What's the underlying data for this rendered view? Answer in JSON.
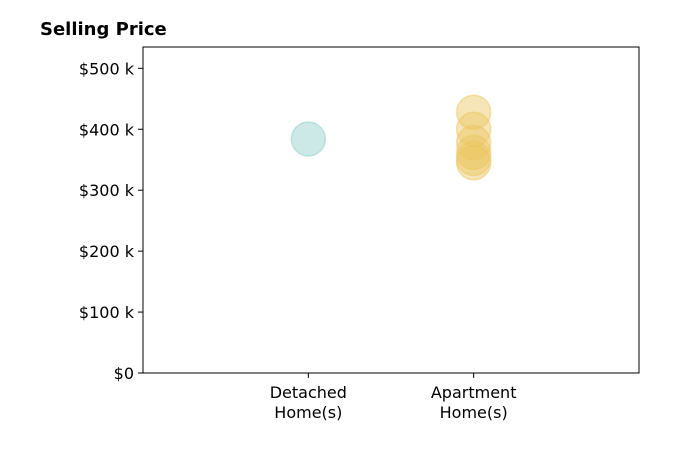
{
  "chart_data": {
    "type": "scatter",
    "title": "Selling Price",
    "xlabel": "",
    "ylabel": "",
    "categories": [
      [
        "Detached",
        "Home(s)"
      ],
      [
        "Apartment",
        "Home(s)"
      ]
    ],
    "x_range": [
      -1,
      2
    ],
    "ylim": [
      0,
      535000
    ],
    "y_ticks": [
      0,
      100000,
      200000,
      300000,
      400000,
      500000
    ],
    "y_tick_labels": [
      "$0",
      "$100 k",
      "$200 k",
      "$300 k",
      "$400 k",
      "$500 k"
    ],
    "grid": false,
    "series": [
      {
        "category_index": 0,
        "color": "#8ecfca",
        "values": [
          384000
        ]
      },
      {
        "category_index": 1,
        "color": "#ebc55f",
        "values": [
          428000,
          400000,
          378000,
          362000,
          352000,
          345000
        ]
      }
    ]
  }
}
